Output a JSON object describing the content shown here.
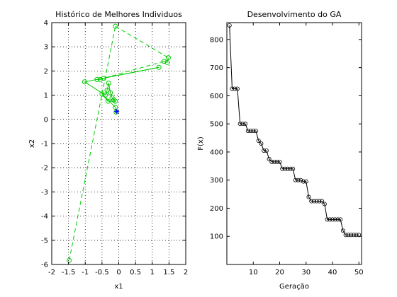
{
  "figure": {
    "background": "#ffffff"
  },
  "chart_data": [
    {
      "type": "line",
      "title": "Histórico de Melhores Individuos",
      "xlabel": "x1",
      "ylabel": "x2",
      "xlim": [
        -2,
        2
      ],
      "ylim": [
        -6,
        4
      ],
      "xticks": [
        -2,
        -1.5,
        -1,
        -0.5,
        0,
        0.5,
        1,
        1.5,
        2
      ],
      "xtick_labels": [
        "-2",
        "-1.5",
        "-1",
        "-0.5",
        "0",
        "0.5",
        "1",
        "1.5",
        "2"
      ],
      "yticks": [
        -6,
        -5,
        -4,
        -3,
        -2,
        -1,
        0,
        1,
        2,
        3,
        4
      ],
      "ytick_labels": [
        "-6",
        "-5",
        "-4",
        "-3",
        "-2",
        "-1",
        "0",
        "1",
        "2",
        "3",
        "4"
      ],
      "grid": true,
      "series": [
        {
          "color": "#00cc00",
          "marker": "circle",
          "points": [
            [
              -1.48,
              -5.83
            ],
            [
              -0.1,
              3.85
            ],
            [
              1.48,
              2.55
            ],
            [
              1.45,
              2.35
            ],
            [
              1.35,
              2.4
            ],
            [
              -0.45,
              1.7
            ],
            [
              -0.55,
              1.65
            ],
            [
              -0.65,
              1.65
            ],
            [
              1.2,
              2.15
            ],
            [
              -1.02,
              1.55
            ],
            [
              -0.4,
              1.0
            ],
            [
              -0.35,
              1.2
            ],
            [
              -0.3,
              1.5
            ],
            [
              -0.25,
              1.1
            ],
            [
              -0.2,
              0.9
            ],
            [
              -0.15,
              0.8
            ],
            [
              -0.1,
              0.75
            ],
            [
              -0.32,
              0.75
            ],
            [
              -0.5,
              1.05
            ],
            [
              -0.1,
              0.5
            ],
            [
              -0.08,
              0.3
            ]
          ],
          "line_styles": [
            "dashed",
            "dashed",
            "solid",
            "solid",
            "dashed",
            "solid",
            "solid",
            "solid",
            "solid",
            "solid",
            "solid",
            "solid",
            "solid",
            "solid",
            "solid",
            "solid",
            "solid",
            "solid",
            "solid",
            "solid"
          ]
        }
      ],
      "best_point": {
        "x": -0.06,
        "y": 0.33,
        "marker": "star",
        "color": "#0000ff"
      }
    },
    {
      "type": "line",
      "title": "Desenvolvimento do GA",
      "xlabel": "Geração",
      "ylabel": "F(x)",
      "xlim": [
        0,
        51
      ],
      "ylim": [
        0,
        860
      ],
      "xticks": [
        10,
        20,
        30,
        40,
        50
      ],
      "xtick_labels": [
        "10",
        "20",
        "30",
        "40",
        "50"
      ],
      "yticks": [
        100,
        200,
        300,
        400,
        500,
        600,
        700,
        800
      ],
      "ytick_labels": [
        "100",
        "200",
        "300",
        "400",
        "500",
        "600",
        "700",
        "800"
      ],
      "grid": false,
      "series": [
        {
          "color": "#000000",
          "marker": "circle",
          "x": [
            1,
            2,
            3,
            4,
            5,
            6,
            7,
            8,
            9,
            10,
            11,
            12,
            13,
            14,
            15,
            16,
            17,
            18,
            19,
            20,
            21,
            22,
            23,
            24,
            25,
            26,
            27,
            28,
            29,
            30,
            31,
            32,
            33,
            34,
            35,
            36,
            37,
            38,
            39,
            40,
            41,
            42,
            43,
            44,
            45,
            46,
            47,
            48,
            49,
            50
          ],
          "y": [
            850,
            625,
            625,
            625,
            500,
            500,
            500,
            475,
            475,
            475,
            475,
            440,
            430,
            405,
            405,
            375,
            365,
            365,
            365,
            365,
            340,
            340,
            340,
            340,
            340,
            300,
            300,
            300,
            295,
            295,
            240,
            225,
            225,
            225,
            225,
            225,
            215,
            160,
            160,
            160,
            160,
            160,
            160,
            120,
            105,
            105,
            105,
            105,
            105,
            105
          ]
        }
      ]
    }
  ]
}
